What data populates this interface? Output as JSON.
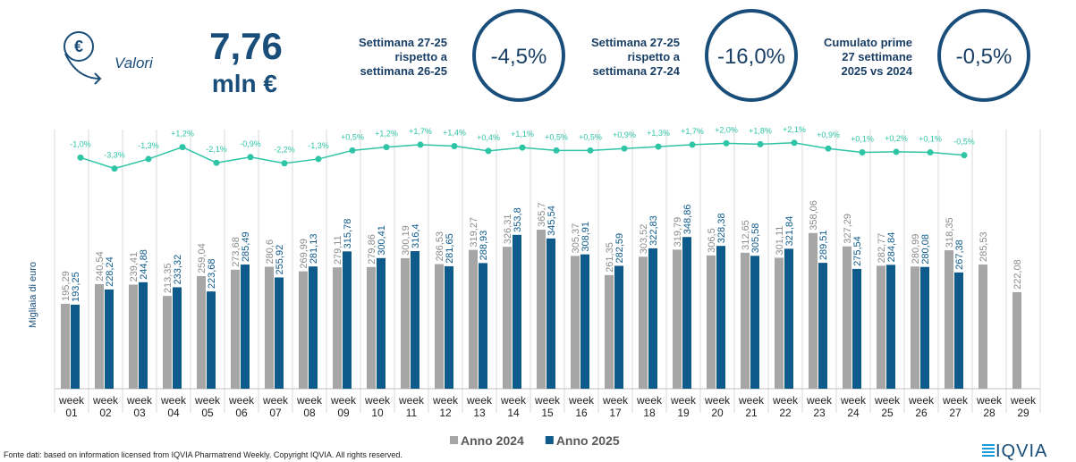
{
  "header": {
    "label": "Valori",
    "value": "7,76",
    "unit": "mln €"
  },
  "kpis": [
    {
      "lines": [
        "Settimana 27-25",
        "rispetto a",
        "settimana 26-25"
      ],
      "value": "-4,5%"
    },
    {
      "lines": [
        "Settimana 27-25",
        "rispetto a",
        "settimana 27-24"
      ],
      "value": "-16,0%"
    },
    {
      "lines": [
        "Cumulato prime",
        "27 settimane",
        "2025 vs 2024"
      ],
      "value": "-0,5%"
    }
  ],
  "chart_data": {
    "type": "bar",
    "y_label": "Migliaia di euro",
    "categories": [
      "week 01",
      "week 02",
      "week 03",
      "week 04",
      "week 05",
      "week 06",
      "week 07",
      "week 08",
      "week 09",
      "week 10",
      "week 11",
      "week 12",
      "week 13",
      "week 14",
      "week 15",
      "week 16",
      "week 17",
      "week 18",
      "week 19",
      "week 20",
      "week 21",
      "week 22",
      "week 23",
      "week 24",
      "week 25",
      "week 26",
      "week 27",
      "week 28",
      "week 29"
    ],
    "ylim": [
      0,
      600
    ],
    "y2lim": [
      -4.5,
      3
    ],
    "series": [
      {
        "name": "Anno 2024",
        "color": "#a6a6a6",
        "values": [
          195.29,
          240.54,
          239.41,
          213.35,
          259.04,
          273.68,
          280.6,
          269.99,
          279.11,
          279.86,
          300.19,
          286.53,
          319.27,
          326.31,
          365.7,
          305.37,
          261.35,
          303.52,
          319.79,
          306.5,
          312.65,
          301.11,
          358.06,
          327.29,
          282.77,
          280.99,
          318.35,
          285.53,
          222.08
        ],
        "value_labels": [
          "195,29",
          "240,54",
          "239,41",
          "213,35",
          "259,04",
          "273,68",
          "280,6",
          "269,99",
          "279,11",
          "279,86",
          "300,19",
          "286,53",
          "319,27",
          "326,31",
          "365,7",
          "305,37",
          "261,35",
          "303,52",
          "319,79",
          "306,5",
          "312,65",
          "301,11",
          "358,06",
          "327,29",
          "282,77",
          "280,99",
          "318,35",
          "285,53",
          "222,08"
        ]
      },
      {
        "name": "Anno 2025",
        "color": "#0e5a8a",
        "values": [
          193.25,
          228.24,
          244.88,
          233.32,
          223.68,
          285.49,
          255.92,
          281.13,
          315.78,
          300.41,
          316.4,
          281.65,
          288.93,
          353.8,
          345.54,
          308.91,
          282.59,
          322.83,
          348.86,
          328.38,
          305.58,
          321.84,
          289.51,
          275.54,
          284.84,
          280.08,
          267.38,
          null,
          null
        ],
        "value_labels": [
          "193,25",
          "228,24",
          "244,88",
          "233,32",
          "223,68",
          "285,49",
          "255,92",
          "281,13",
          "315,78",
          "300,41",
          "316,4",
          "281,65",
          "288,93",
          "353,8",
          "345,54",
          "308,91",
          "282,59",
          "322,83",
          "348,86",
          "328,38",
          "305,58",
          "321,84",
          "289,51",
          "275,54",
          "284,84",
          "280,08",
          "267,38",
          null,
          null
        ]
      },
      {
        "type": "line",
        "axis": "y2",
        "color": "#2ec4a6",
        "values": [
          -1.0,
          -3.3,
          -1.3,
          1.2,
          -2.1,
          -0.9,
          -2.2,
          -1.3,
          0.5,
          1.2,
          1.7,
          1.4,
          0.4,
          1.1,
          0.5,
          0.5,
          0.9,
          1.3,
          1.7,
          2.0,
          1.8,
          2.1,
          0.9,
          0.1,
          0.2,
          0.1,
          -0.5,
          null,
          null
        ],
        "value_labels": [
          "-1,0%",
          "-3,3%",
          "-1,3%",
          "+1,2%",
          "-2,1%",
          "-0,9%",
          "-2,2%",
          "-1,3%",
          "+0,5%",
          "+1,2%",
          "+1,7%",
          "+1,4%",
          "+0,4%",
          "+1,1%",
          "+0,5%",
          "+0,5%",
          "+0,9%",
          "+1,3%",
          "+1,7%",
          "+2,0%",
          "+1,8%",
          "+2,1%",
          "+0,9%",
          "+0,1%",
          "+0,2%",
          "+0,1%",
          "-0,5%",
          null,
          null
        ]
      }
    ]
  },
  "source": "Fonte dati: based on information licensed from IQVIA Pharmatrend Weekly. Copyright IQVIA. All rights reserved.",
  "logo": "IQVIA"
}
